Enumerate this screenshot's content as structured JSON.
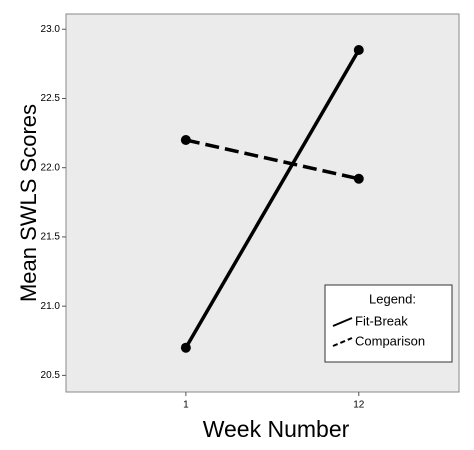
{
  "chart_data": {
    "type": "line",
    "y_label": "Mean SWLS Scores",
    "x_label": "Week Number",
    "categories": [
      "1",
      "12"
    ],
    "series": [
      {
        "name": "Fit-Break",
        "color": "#000000",
        "dash": "solid",
        "values": [
          20.7,
          22.85
        ]
      },
      {
        "name": "Comparison",
        "color": "#000000",
        "dash": "dashed",
        "values": [
          22.2,
          21.92
        ]
      }
    ],
    "ylim": [
      20.38,
      23.11
    ],
    "yticks": [
      20.5,
      {
        "value": 21,
        "label": "21.0"
      },
      21.5,
      {
        "value": 22,
        "label": "22.0"
      },
      22.5,
      {
        "value": 23,
        "label": "23.0"
      }
    ],
    "legend_title": "Legend:",
    "legend": "lower right",
    "background": "#ebebeb"
  }
}
